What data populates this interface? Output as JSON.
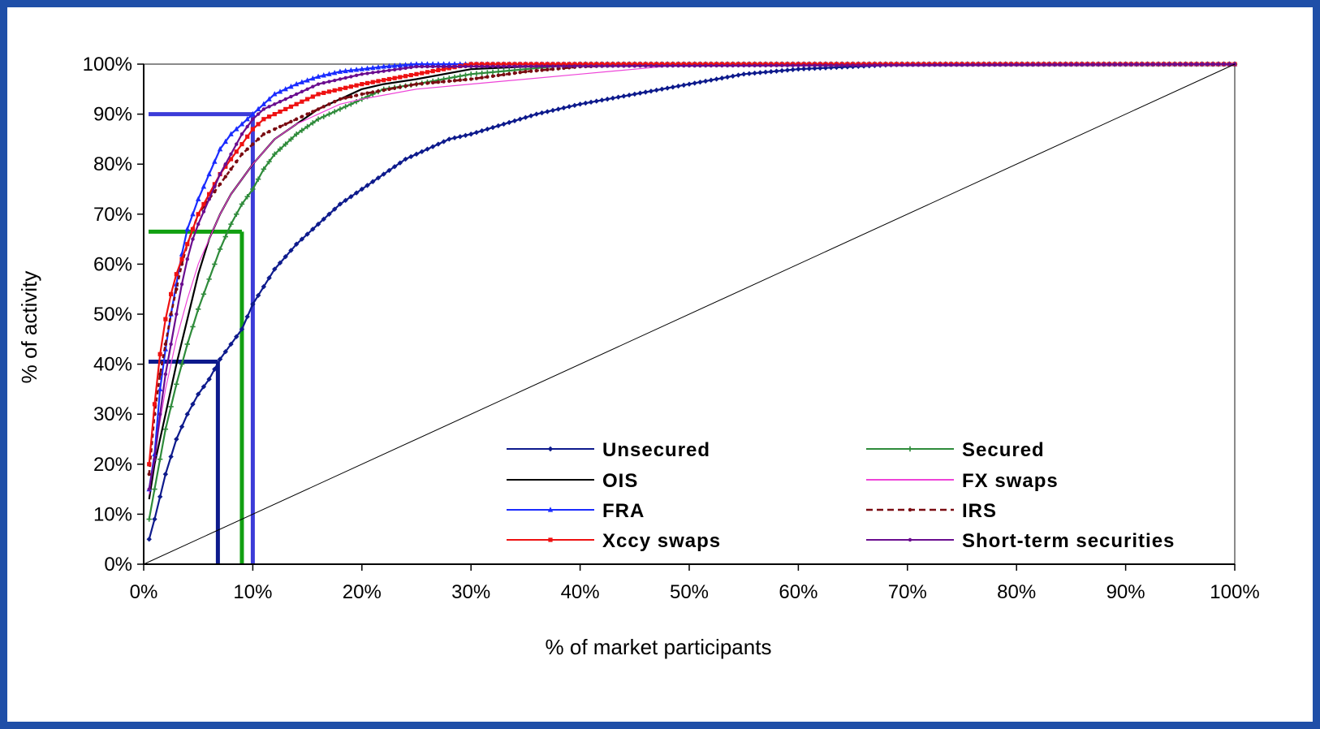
{
  "chart_data": {
    "type": "line",
    "title": "",
    "xlabel": "% of market participants",
    "ylabel": "% of activity",
    "xlim": [
      0,
      100
    ],
    "ylim": [
      0,
      100
    ],
    "x_ticks": [
      "0%",
      "10%",
      "20%",
      "30%",
      "40%",
      "50%",
      "60%",
      "70%",
      "80%",
      "90%",
      "100%"
    ],
    "y_ticks": [
      "0%",
      "10%",
      "20%",
      "30%",
      "40%",
      "50%",
      "60%",
      "70%",
      "80%",
      "90%",
      "100%"
    ],
    "grid": false,
    "legend_position": "bottom-right, inside",
    "series": [
      {
        "name": "Unsecured",
        "color": "#0d1a8c",
        "style": "solid",
        "marker": "diamond",
        "x": [
          0.5,
          1,
          2,
          3,
          4,
          5,
          6,
          7,
          8,
          9,
          10,
          12,
          14,
          16,
          18,
          20,
          22,
          24,
          26,
          28,
          30,
          33,
          36,
          40,
          45,
          50,
          55,
          60,
          65,
          70,
          75,
          80,
          90,
          100
        ],
        "y": [
          5,
          9,
          18,
          25,
          30,
          34,
          37,
          41,
          44,
          47,
          52,
          59,
          64,
          68,
          72,
          75,
          78,
          81,
          83,
          85,
          86,
          88,
          90,
          92,
          94,
          96,
          98,
          99,
          99.5,
          100,
          100,
          100,
          100,
          100
        ]
      },
      {
        "name": "Secured",
        "color": "#2e8b3a",
        "style": "solid",
        "marker": "plus",
        "x": [
          0.5,
          1,
          2,
          3,
          4,
          5,
          6,
          7,
          8,
          9,
          10,
          11,
          12,
          13,
          14,
          16,
          18,
          20,
          22,
          25,
          30,
          35,
          40,
          50,
          60,
          70,
          80,
          100
        ],
        "y": [
          9,
          15,
          27,
          36,
          44,
          51,
          57,
          63,
          68,
          72,
          75,
          79,
          82,
          84,
          86,
          89,
          91,
          93,
          95,
          96,
          98,
          99,
          100,
          100,
          100,
          100,
          100,
          100
        ]
      },
      {
        "name": "OIS",
        "color": "#000000",
        "style": "solid",
        "marker": "none",
        "x": [
          0.5,
          1,
          2,
          3,
          4,
          5,
          6,
          7,
          8,
          9,
          10,
          12,
          14,
          16,
          18,
          20,
          22,
          25,
          30,
          35,
          40,
          50,
          100
        ],
        "y": [
          13,
          20,
          30,
          40,
          49,
          58,
          65,
          70,
          74,
          77,
          80,
          85,
          88,
          91,
          93,
          95,
          96,
          97,
          99,
          99.5,
          100,
          100,
          100
        ]
      },
      {
        "name": "FX swaps",
        "color": "#ee44d8",
        "style": "solid",
        "marker": "none",
        "x": [
          0.5,
          1,
          2,
          3,
          4,
          5,
          6,
          7,
          8,
          9,
          10,
          12,
          14,
          16,
          18,
          20,
          25,
          30,
          35,
          40,
          45,
          50,
          100
        ],
        "y": [
          14,
          22,
          35,
          45,
          53,
          60,
          65,
          70,
          74,
          77,
          80,
          85,
          88,
          90,
          92,
          93,
          95,
          96,
          97,
          98,
          99,
          100,
          100
        ]
      },
      {
        "name": "FRA",
        "color": "#1a2cff",
        "style": "solid",
        "marker": "triangle",
        "x": [
          0.5,
          1,
          1.5,
          2,
          2.5,
          3,
          3.5,
          4,
          4.5,
          5,
          6,
          7,
          8,
          9,
          10,
          11,
          12,
          13,
          14,
          16,
          18,
          20,
          22,
          25,
          30,
          100
        ],
        "y": [
          15,
          22,
          35,
          43,
          50,
          56,
          62,
          67,
          70,
          73,
          78,
          83,
          86,
          88,
          90,
          92,
          94,
          95,
          96,
          97.5,
          98.5,
          99,
          99.5,
          100,
          100,
          100
        ]
      },
      {
        "name": "IRS",
        "color": "#7a0c12",
        "style": "dashed",
        "marker": "dot",
        "x": [
          0.5,
          1,
          1.5,
          2,
          2.5,
          3,
          3.5,
          4,
          4.5,
          5,
          6,
          7,
          8,
          9,
          10,
          11,
          12,
          14,
          16,
          18,
          20,
          25,
          30,
          35,
          40,
          50,
          100
        ],
        "y": [
          18,
          30,
          38,
          44,
          50,
          55,
          60,
          64,
          67,
          70,
          73,
          76,
          79,
          82,
          84,
          86,
          87,
          89,
          91,
          93,
          94,
          96,
          97,
          98.5,
          99.5,
          100,
          100
        ]
      },
      {
        "name": "Xccy swaps",
        "color": "#ee1111",
        "style": "solid",
        "marker": "square",
        "x": [
          0.5,
          1,
          1.5,
          2,
          2.5,
          3,
          3.5,
          4,
          4.5,
          5,
          6,
          7,
          8,
          9,
          10,
          11,
          12,
          14,
          16,
          18,
          20,
          25,
          30,
          100
        ],
        "y": [
          20,
          32,
          42,
          49,
          54,
          58,
          61,
          64,
          67,
          70,
          74,
          78,
          81,
          84,
          87,
          89,
          90,
          92,
          94,
          95,
          96,
          98,
          100,
          100
        ]
      },
      {
        "name": "Short-term securities",
        "color": "#6a0d8f",
        "style": "solid",
        "marker": "dot",
        "x": [
          0.5,
          1,
          1.5,
          2,
          2.5,
          3,
          3.5,
          4,
          4.5,
          5,
          6,
          7,
          8,
          9,
          10,
          11,
          12,
          14,
          16,
          18,
          20,
          25,
          100
        ],
        "y": [
          15,
          21,
          30,
          38,
          44,
          50,
          56,
          61,
          65,
          68,
          73,
          78,
          82,
          86,
          89,
          91,
          92,
          94,
          96,
          97,
          98,
          99.5,
          100
        ]
      },
      {
        "name": "",
        "color": "#000000",
        "style": "thin",
        "marker": "none",
        "x": [
          0,
          100
        ],
        "y": [
          0,
          100
        ]
      }
    ],
    "annotations": [
      {
        "type": "guide",
        "color": "#3c3cd8",
        "x": 10,
        "y": 90
      },
      {
        "type": "guide",
        "color": "#11a011",
        "x": 9,
        "y": 66.5
      },
      {
        "type": "guide",
        "color": "#0d1a8c",
        "x": 6.8,
        "y": 40.5
      }
    ]
  }
}
